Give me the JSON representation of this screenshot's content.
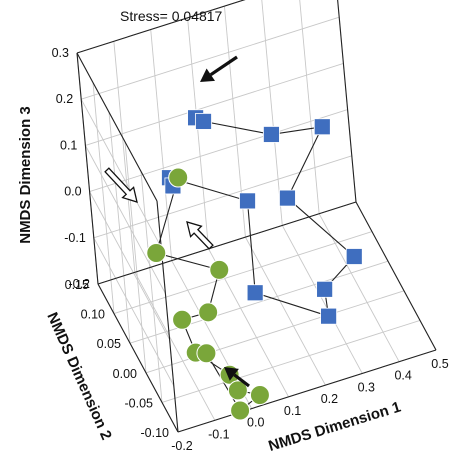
{
  "chart_data": {
    "type": "scatter",
    "title": "Stress= 0.04817",
    "xlabel": "NMDS Dimension 1",
    "ylabel": "NMDS Dimension 2",
    "zlabel": "NMDS Dimension 3",
    "xlim": [
      -0.2,
      0.5
    ],
    "ylim": [
      -0.1,
      0.15
    ],
    "zlim": [
      -0.2,
      0.3
    ],
    "x_ticks": [
      "-0.2",
      "-0.1",
      "0.0",
      "0.1",
      "0.2",
      "0.3",
      "0.4",
      "0.5"
    ],
    "y_ticks": [
      "-0.10",
      "-0.05",
      "0.00",
      "0.05",
      "0.10",
      "0.15"
    ],
    "z_ticks": [
      "-0.2",
      "-0.1",
      "0.0",
      "0.1",
      "0.2",
      "0.3"
    ],
    "grid": true,
    "series": [
      {
        "marker": "square",
        "color": "#3f6ebf",
        "connected": true,
        "points": [
          {
            "x": 0.02,
            "y": 0.04,
            "z": 0.245
          },
          {
            "x": 0.04,
            "y": 0.04,
            "z": 0.232
          },
          {
            "x": 0.23,
            "y": 0.06,
            "z": 0.13
          },
          {
            "x": 0.38,
            "y": 0.08,
            "z": 0.083
          },
          {
            "x": 0.25,
            "y": 0.05,
            "z": 0.0
          },
          {
            "x": 0.37,
            "y": -0.01,
            "z": -0.08
          },
          {
            "x": 0.27,
            "y": -0.03,
            "z": -0.1
          },
          {
            "x": 0.26,
            "y": -0.05,
            "z": -0.13
          },
          {
            "x": 0.1,
            "y": -0.01,
            "z": -0.09
          },
          {
            "x": 0.13,
            "y": 0.03,
            "z": 0.05
          },
          {
            "x": 0.0,
            "y": 0.13,
            "z": 0.005
          },
          {
            "x": 0.0,
            "y": 0.12,
            "z": 0.0
          }
        ]
      },
      {
        "marker": "circle",
        "color": "#7aa63a",
        "connected": true,
        "points": [
          {
            "x": 0.03,
            "y": 0.14,
            "z": -0.015
          },
          {
            "x": -0.06,
            "y": 0.12,
            "z": -0.13
          },
          {
            "x": 0.06,
            "y": 0.06,
            "z": -0.12
          },
          {
            "x": 0.01,
            "y": 0.045,
            "z": -0.18
          },
          {
            "x": -0.05,
            "y": 0.06,
            "z": -0.2
          },
          {
            "x": -0.05,
            "y": 0.02,
            "z": -0.22
          },
          {
            "x": 0.02,
            "y": 0.0,
            "z": -0.26
          },
          {
            "x": 0.01,
            "y": -0.04,
            "z": -0.24
          },
          {
            "x": 0.06,
            "y": -0.05,
            "z": -0.25
          },
          {
            "x": -0.01,
            "y": -0.07,
            "z": -0.24
          },
          {
            "x": -0.05,
            "y": -0.02,
            "z": -0.17
          }
        ]
      }
    ],
    "annotations": [
      {
        "type": "arrow",
        "style": "filled",
        "color": "#111111"
      },
      {
        "type": "arrow",
        "style": "hollow",
        "color": "#111111"
      },
      {
        "type": "arrow",
        "style": "hollow",
        "color": "#111111"
      },
      {
        "type": "arrow",
        "style": "filled",
        "color": "#111111"
      }
    ]
  }
}
